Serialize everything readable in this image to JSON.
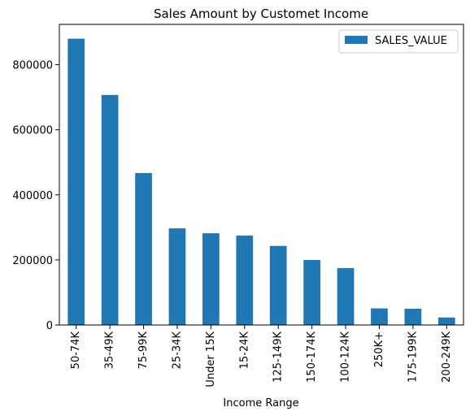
{
  "chart_data": {
    "type": "bar",
    "title": "Sales Amount by Customet Income",
    "xlabel": "Income Range",
    "ylabel": "",
    "categories": [
      "50-74K",
      "35-49K",
      "75-99K",
      "25-34K",
      "Under 15K",
      "15-24K",
      "125-149K",
      "150-174K",
      "100-124K",
      "250K+",
      "175-199K",
      "200-249K"
    ],
    "series": [
      {
        "name": "SALES_VALUE",
        "color": "#1f77b4",
        "values": [
          880000,
          707000,
          467000,
          297000,
          282000,
          275000,
          243000,
          200000,
          175000,
          51000,
          50000,
          23000
        ]
      }
    ],
    "ylim": [
      0,
      924000
    ],
    "yticks": [
      0,
      200000,
      400000,
      600000,
      800000
    ],
    "grid": false,
    "legend_position": "top-right"
  }
}
